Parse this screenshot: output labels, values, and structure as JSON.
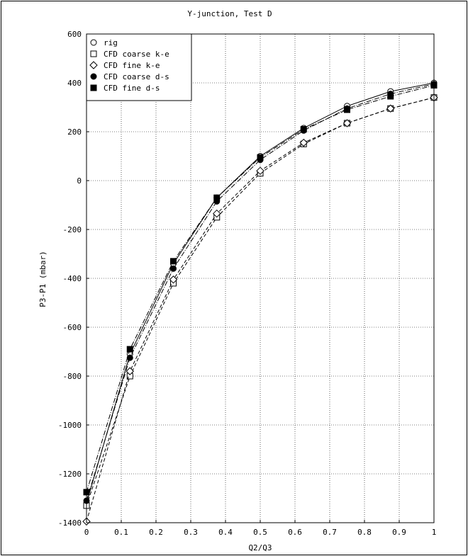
{
  "chart_data": {
    "type": "line",
    "title": "Y-junction, Test D",
    "xlabel": "Q2/Q3",
    "ylabel": "P3-P1 (mbar)",
    "xlim": [
      0,
      1
    ],
    "ylim": [
      -1400,
      600
    ],
    "x_ticks": [
      "0",
      "0.1",
      "0.2",
      "0.3",
      "0.4",
      "0.5",
      "0.6",
      "0.7",
      "0.8",
      "0.9",
      "1"
    ],
    "y_ticks": [
      "600",
      "400",
      "200",
      "0",
      "-200",
      "-400",
      "-600",
      "-800",
      "-1000",
      "-1200",
      "-1400"
    ],
    "grid": true,
    "legend_position": "top-left",
    "x": [
      0,
      0.125,
      0.25,
      0.375,
      0.5,
      0.625,
      0.75,
      0.875,
      1
    ],
    "series": [
      {
        "name": "rig",
        "marker": "open-circle",
        "line": "solid",
        "values": [
          -1320,
          -710,
          -340,
          -70,
          100,
          215,
          305,
          365,
          400
        ]
      },
      {
        "name": "CFD coarse k-e",
        "marker": "open-square",
        "line": "dashed",
        "values": [
          -1330,
          -800,
          -420,
          -150,
          30,
          150,
          235,
          295,
          340
        ]
      },
      {
        "name": "CFD fine k-e",
        "marker": "open-diamond",
        "line": "dashed",
        "values": [
          -1395,
          -780,
          -405,
          -135,
          40,
          155,
          235,
          295,
          340
        ]
      },
      {
        "name": "CFD coarse d-s",
        "marker": "filled-circle",
        "line": "dashdot",
        "values": [
          -1310,
          -725,
          -360,
          -85,
          85,
          205,
          295,
          355,
          395
        ]
      },
      {
        "name": "CFD fine d-s",
        "marker": "filled-square",
        "line": "dashdot",
        "values": [
          -1275,
          -690,
          -330,
          -70,
          95,
          210,
          290,
          345,
          390
        ]
      }
    ]
  }
}
